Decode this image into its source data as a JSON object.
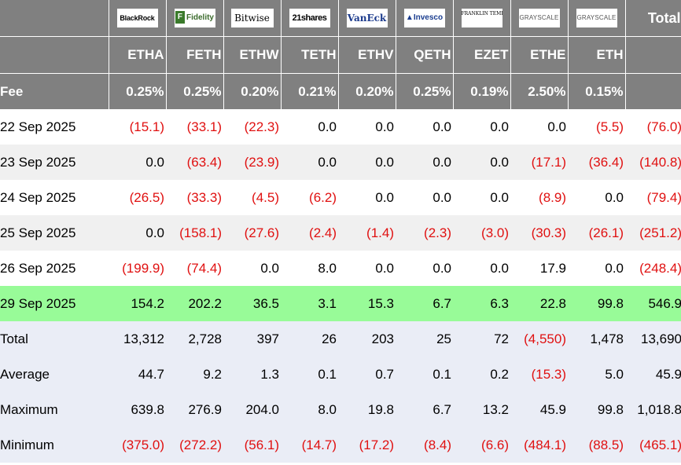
{
  "header": {
    "logos": [
      {
        "icon": "blackrock-logo",
        "text": "BlackRock"
      },
      {
        "icon": "fidelity-logo",
        "text": "Fidelity"
      },
      {
        "icon": "bitwise-logo",
        "text": "Bitwise"
      },
      {
        "icon": "21shares-logo",
        "text": "21shares"
      },
      {
        "icon": "vaneck-logo",
        "text": "VanEck"
      },
      {
        "icon": "invesco-logo",
        "text": "Invesco"
      },
      {
        "icon": "franklin-templeton-logo",
        "text": "FRANKLIN TEMPLETON"
      },
      {
        "icon": "grayscale-logo",
        "text": "GRAYSCALE"
      },
      {
        "icon": "grayscale-logo",
        "text": "GRAYSCALE"
      }
    ],
    "total_label": "Total",
    "tickers": [
      "ETHA",
      "FETH",
      "ETHW",
      "TETH",
      "ETHV",
      "QETH",
      "EZET",
      "ETHE",
      "ETH"
    ],
    "fee_label": "Fee",
    "fees": [
      "0.25%",
      "0.25%",
      "0.20%",
      "0.21%",
      "0.20%",
      "0.25%",
      "0.19%",
      "2.50%",
      "0.15%"
    ]
  },
  "rows": [
    {
      "label": "22 Sep 2025",
      "values": [
        "(15.1)",
        "(33.1)",
        "(22.3)",
        "0.0",
        "0.0",
        "0.0",
        "0.0",
        "0.0",
        "(5.5)",
        "(76.0)"
      ]
    },
    {
      "label": "23 Sep 2025",
      "values": [
        "0.0",
        "(63.4)",
        "(23.9)",
        "0.0",
        "0.0",
        "0.0",
        "0.0",
        "(17.1)",
        "(36.4)",
        "(140.8)"
      ]
    },
    {
      "label": "24 Sep 2025",
      "values": [
        "(26.5)",
        "(33.3)",
        "(4.5)",
        "(6.2)",
        "0.0",
        "0.0",
        "0.0",
        "(8.9)",
        "0.0",
        "(79.4)"
      ]
    },
    {
      "label": "25 Sep 2025",
      "values": [
        "0.0",
        "(158.1)",
        "(27.6)",
        "(2.4)",
        "(1.4)",
        "(2.3)",
        "(3.0)",
        "(30.3)",
        "(26.1)",
        "(251.2)"
      ]
    },
    {
      "label": "26 Sep 2025",
      "values": [
        "(199.9)",
        "(74.4)",
        "0.0",
        "8.0",
        "0.0",
        "0.0",
        "0.0",
        "17.9",
        "0.0",
        "(248.4)"
      ]
    },
    {
      "label": "29 Sep 2025",
      "values": [
        "154.2",
        "202.2",
        "36.5",
        "3.1",
        "15.3",
        "6.7",
        "6.3",
        "22.8",
        "99.8",
        "546.9"
      ]
    }
  ],
  "stats": [
    {
      "label": "Total",
      "values": [
        "13,312",
        "2,728",
        "397",
        "26",
        "203",
        "25",
        "72",
        "(4,550)",
        "1,478",
        "13,690"
      ]
    },
    {
      "label": "Average",
      "values": [
        "44.7",
        "9.2",
        "1.3",
        "0.1",
        "0.7",
        "0.1",
        "0.2",
        "(15.3)",
        "5.0",
        "45.9"
      ]
    },
    {
      "label": "Maximum",
      "values": [
        "639.8",
        "276.9",
        "204.0",
        "8.0",
        "19.8",
        "6.7",
        "13.2",
        "45.9",
        "99.8",
        "1,018.8"
      ]
    },
    {
      "label": "Minimum",
      "values": [
        "(375.0)",
        "(272.2)",
        "(56.1)",
        "(14.7)",
        "(17.2)",
        "(8.4)",
        "(6.6)",
        "(484.1)",
        "(88.5)",
        "(465.1)"
      ]
    }
  ],
  "colors": {
    "header_bg": "#808080",
    "alt_row": "#f0f0f0",
    "highlight_row": "#98fb98",
    "stat_bg": "#eaedf6",
    "negative": "#e01010"
  }
}
